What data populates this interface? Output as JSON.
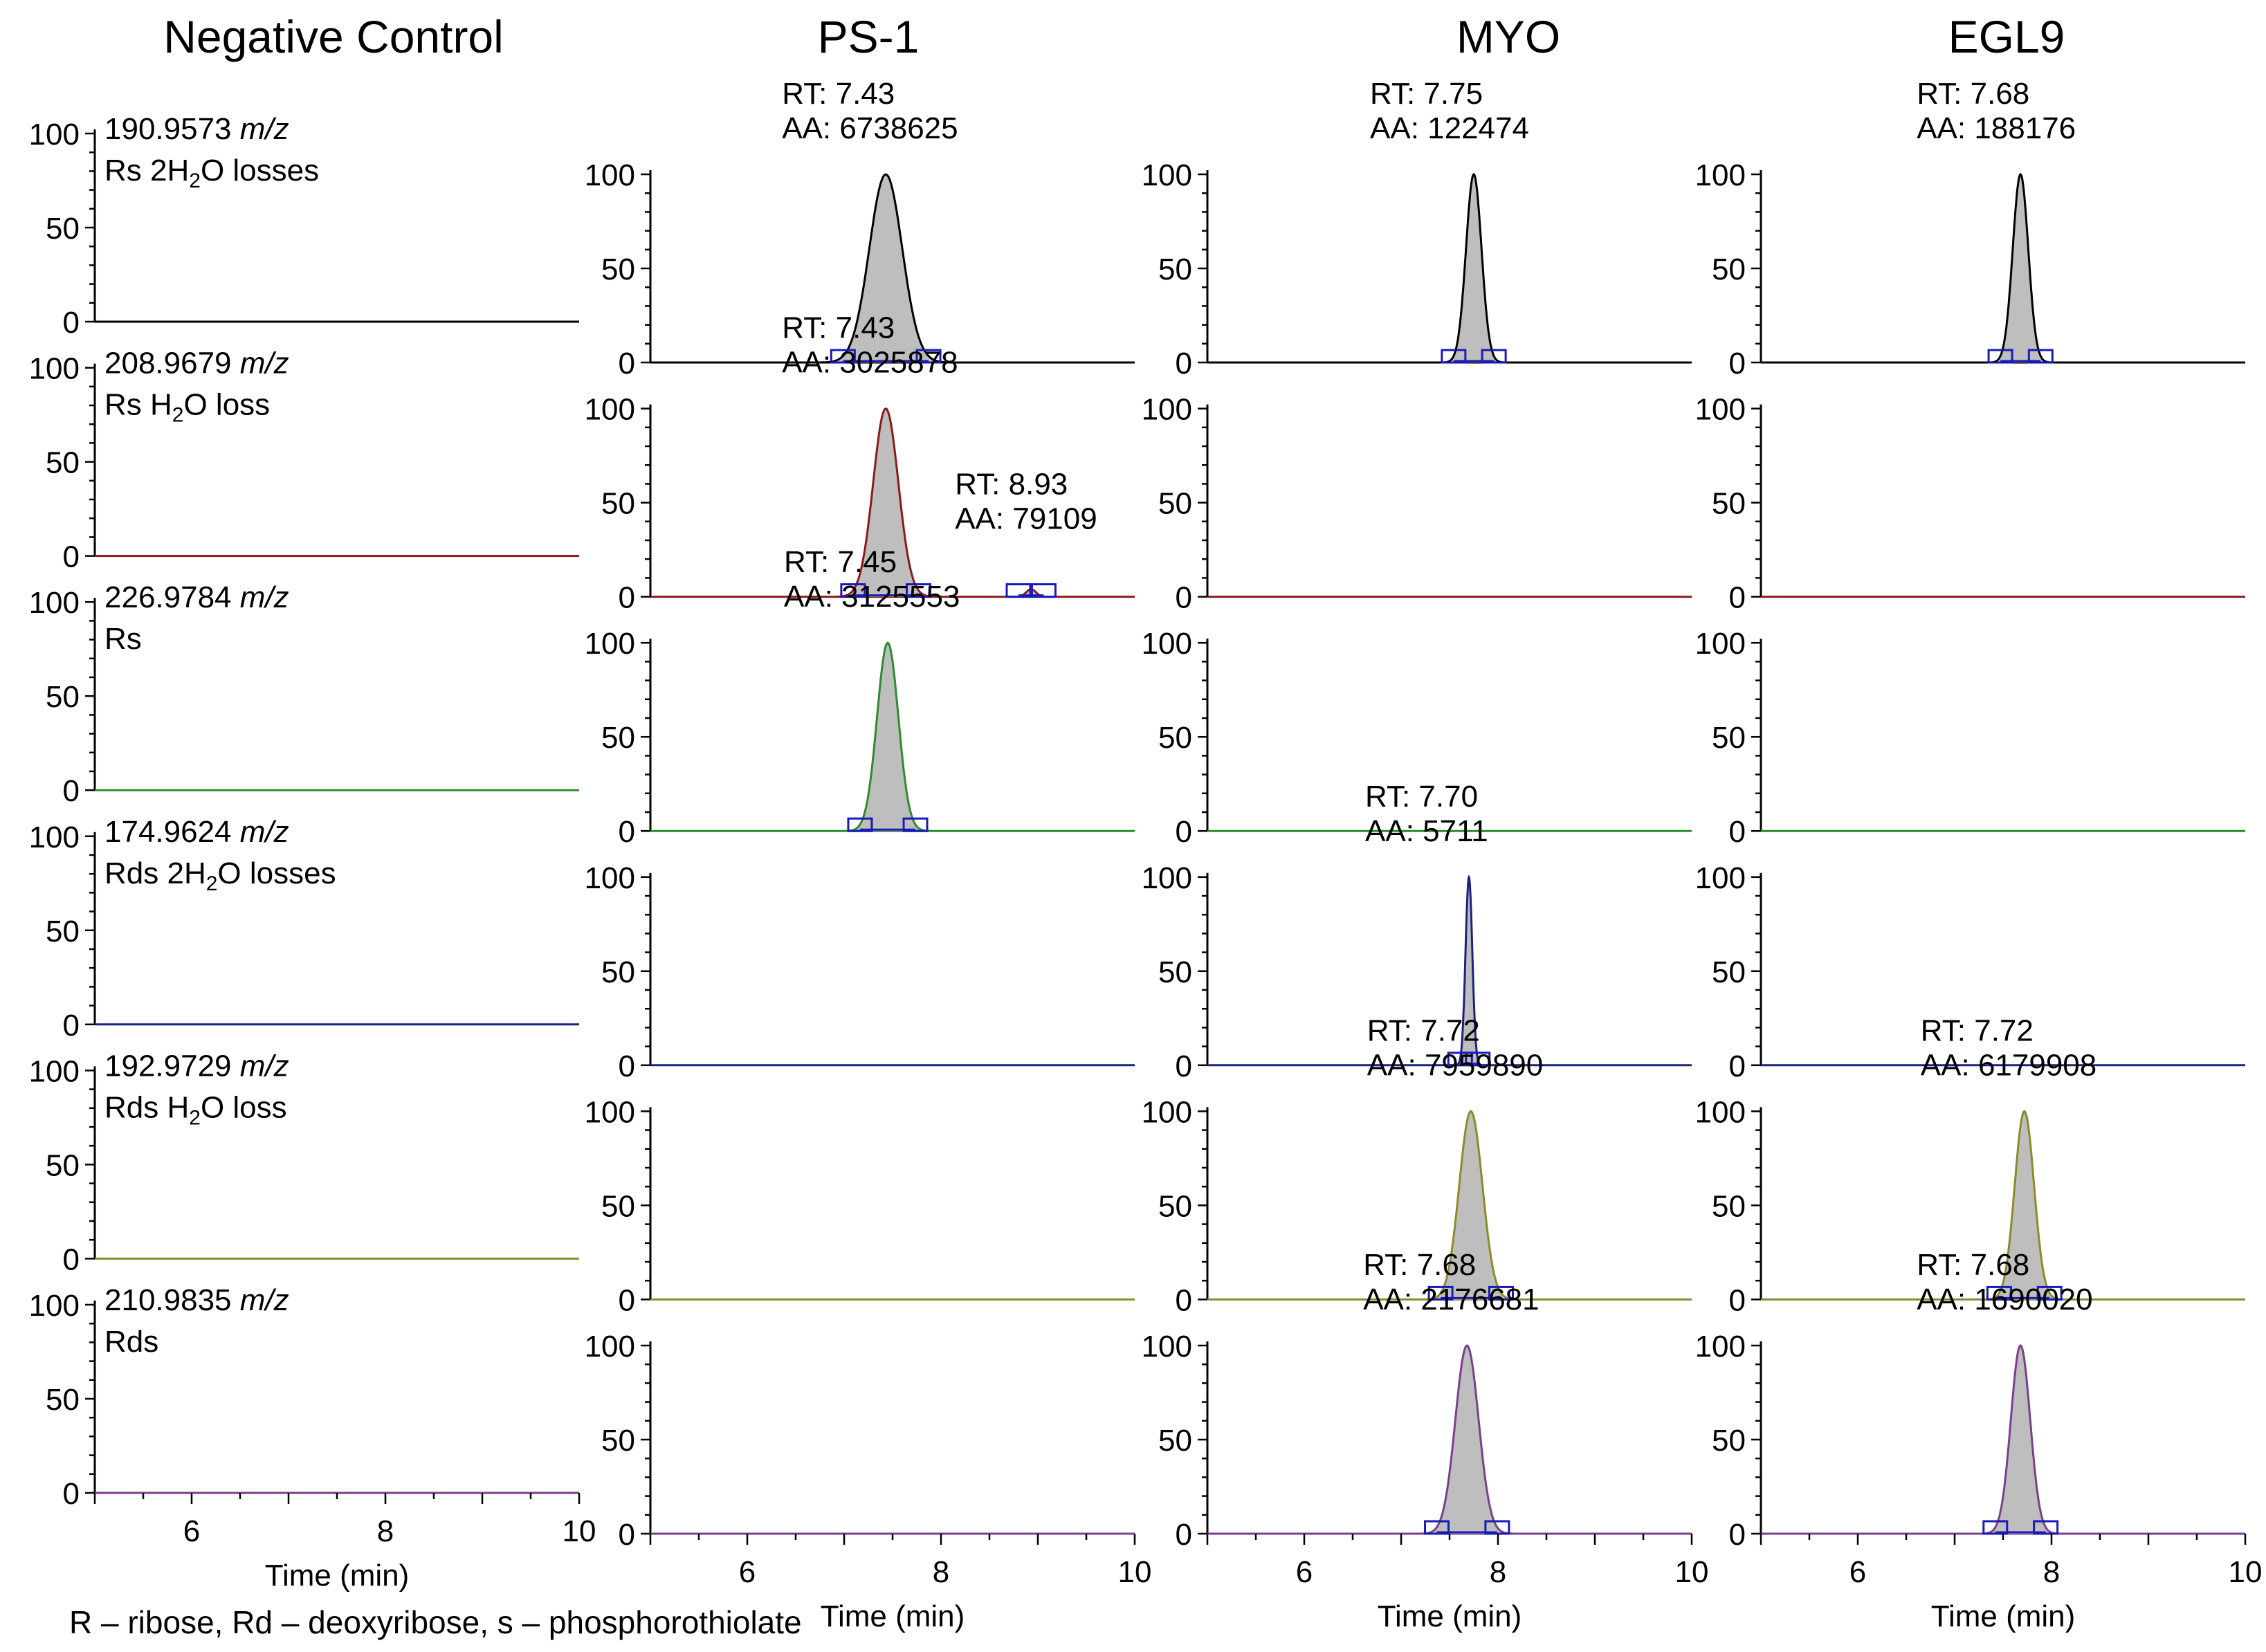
{
  "column_titles": [
    "Negative Control",
    "PS-1",
    "MYO",
    "EGL9"
  ],
  "footnote": "R – ribose, Rd – deoxyribose, s – phosphorothiolate",
  "series_colors": [
    "#000000",
    "#8B1A1A",
    "#2E8B2E",
    "#1A237E",
    "#8B8B2A",
    "#7B3F8B"
  ],
  "peak_fill_color": "#BEBEBE",
  "boundary_marker_color": "#1A1AB8",
  "chart_data": {
    "type": "line",
    "description_axes": "grid of extracted ion chromatograms; y = relative abundance (0-100), x = retention time (min)",
    "xlabel": "Time (min)",
    "xlim": [
      5,
      10
    ],
    "x_ticks": [
      6,
      8,
      10
    ],
    "ylim": [
      0,
      100
    ],
    "y_ticks": [
      0,
      50,
      100
    ],
    "grid": false,
    "rows": [
      {
        "mz": "190.9573",
        "mz_unit": "m/z",
        "label_parts": [
          "Rs 2H",
          "2",
          "O losses"
        ]
      },
      {
        "mz": "208.9679",
        "mz_unit": "m/z",
        "label_parts": [
          "Rs H",
          "2",
          "O loss"
        ]
      },
      {
        "mz": "226.9784",
        "mz_unit": "m/z",
        "label_parts": [
          "Rs",
          "",
          ""
        ]
      },
      {
        "mz": "174.9624",
        "mz_unit": "m/z",
        "label_parts": [
          "Rds 2H",
          "2",
          "O losses"
        ]
      },
      {
        "mz": "192.9729",
        "mz_unit": "m/z",
        "label_parts": [
          "Rds H",
          "2",
          "O loss"
        ]
      },
      {
        "mz": "210.9835",
        "mz_unit": "m/z",
        "label_parts": [
          "Rds",
          "",
          ""
        ]
      }
    ],
    "peaks": [
      {
        "row": 0,
        "col": 1,
        "rt": 7.43,
        "rt_label": "RT: 7.43",
        "aa_label": "AA: 6738625",
        "width": 0.17,
        "height": 100
      },
      {
        "row": 0,
        "col": 2,
        "rt": 7.75,
        "rt_label": "RT: 7.75",
        "aa_label": "AA: 122474",
        "width": 0.08,
        "height": 100
      },
      {
        "row": 0,
        "col": 3,
        "rt": 7.68,
        "rt_label": "RT: 7.68",
        "aa_label": "AA: 188176",
        "width": 0.08,
        "height": 100
      },
      {
        "row": 1,
        "col": 1,
        "rt": 7.43,
        "rt_label": "RT: 7.43",
        "aa_label": "AA: 3025878",
        "width": 0.13,
        "height": 100
      },
      {
        "row": 1,
        "col": 1,
        "rt": 8.93,
        "rt_label": "RT: 8.93",
        "aa_label": "AA: 79109",
        "width": 0.05,
        "height": 4
      },
      {
        "row": 2,
        "col": 1,
        "rt": 7.45,
        "rt_label": "RT: 7.45",
        "aa_label": "AA: 3125553",
        "width": 0.11,
        "height": 100
      },
      {
        "row": 3,
        "col": 2,
        "rt": 7.7,
        "rt_label": "RT: 7.70",
        "aa_label": "AA: 5711",
        "width": 0.035,
        "height": 100
      },
      {
        "row": 4,
        "col": 2,
        "rt": 7.72,
        "rt_label": "RT: 7.72",
        "aa_label": "AA: 7959890",
        "width": 0.12,
        "height": 100
      },
      {
        "row": 4,
        "col": 3,
        "rt": 7.72,
        "rt_label": "RT: 7.72",
        "aa_label": "AA: 6179908",
        "width": 0.1,
        "height": 100
      },
      {
        "row": 5,
        "col": 2,
        "rt": 7.68,
        "rt_label": "RT: 7.68",
        "aa_label": "AA: 2176681",
        "width": 0.12,
        "height": 100
      },
      {
        "row": 5,
        "col": 3,
        "rt": 7.68,
        "rt_label": "RT: 7.68",
        "aa_label": "AA: 1690020",
        "width": 0.1,
        "height": 100
      }
    ]
  }
}
